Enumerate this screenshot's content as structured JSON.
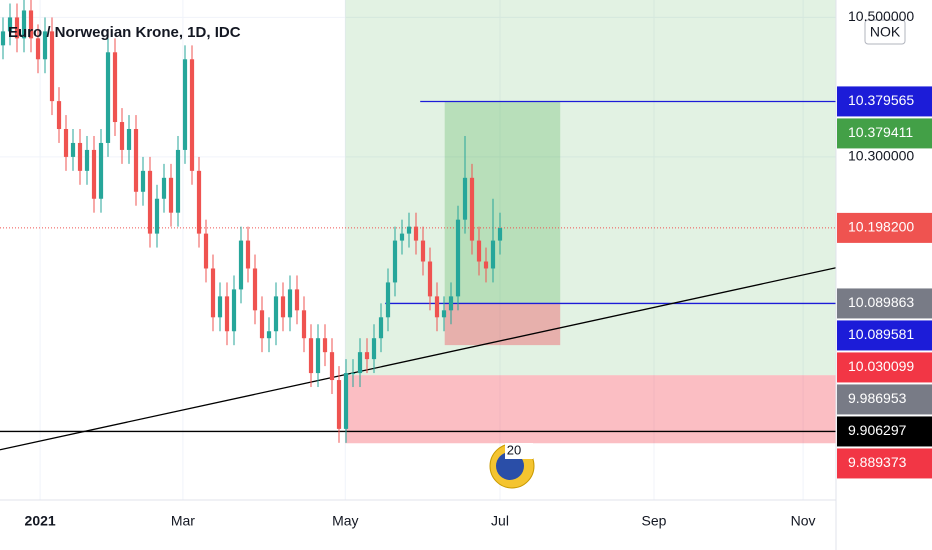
{
  "chart_data": {
    "type": "candlestick",
    "title": "Euro / Norwegian Krone, 1D, IDC",
    "currency": "NOK",
    "watermark_text": "20",
    "x": [
      0,
      1,
      2,
      3,
      4,
      5,
      6,
      7,
      8,
      9,
      10,
      11,
      12,
      13,
      14,
      15,
      16,
      17,
      18,
      19,
      20,
      21,
      22,
      23,
      24,
      25,
      26,
      27,
      28,
      29,
      30,
      31,
      32,
      33,
      34,
      35,
      36,
      37,
      38,
      39,
      40,
      41,
      42,
      43,
      44,
      45,
      46,
      47,
      48,
      49,
      50,
      51,
      52,
      53,
      54,
      55,
      56,
      57,
      58,
      59,
      60,
      61,
      62,
      63,
      64,
      65,
      66,
      67,
      68,
      69,
      70,
      71
    ],
    "series": [
      {
        "up_color": "#26a69a",
        "down_color": "#ef5350",
        "open": [
          10.46,
          10.48,
          10.5,
          10.47,
          10.51,
          10.47,
          10.44,
          10.48,
          10.38,
          10.34,
          10.3,
          10.32,
          10.28,
          10.31,
          10.24,
          10.32,
          10.45,
          10.35,
          10.31,
          10.34,
          10.25,
          10.28,
          10.19,
          10.24,
          10.27,
          10.22,
          10.31,
          10.44,
          10.28,
          10.19,
          10.14,
          10.07,
          10.1,
          10.05,
          10.11,
          10.18,
          10.14,
          10.08,
          10.04,
          10.05,
          10.1,
          10.07,
          10.11,
          10.08,
          10.04,
          9.99,
          10.04,
          10.02,
          9.98,
          9.91,
          9.99,
          9.99,
          10.02,
          10.01,
          10.04,
          10.07,
          10.12,
          10.18,
          10.19,
          10.2,
          10.18,
          10.15,
          10.1,
          10.07,
          10.08,
          10.1,
          10.21,
          10.27,
          10.18,
          10.15,
          10.14,
          10.18
        ],
        "high": [
          10.5,
          10.52,
          10.52,
          10.53,
          10.53,
          10.49,
          10.5,
          10.5,
          10.4,
          10.36,
          10.34,
          10.34,
          10.33,
          10.33,
          10.34,
          10.47,
          10.47,
          10.37,
          10.36,
          10.36,
          10.3,
          10.3,
          10.26,
          10.29,
          10.29,
          10.33,
          10.46,
          10.46,
          10.3,
          10.21,
          10.16,
          10.12,
          10.12,
          10.13,
          10.2,
          10.2,
          10.16,
          10.1,
          10.07,
          10.12,
          10.12,
          10.13,
          10.13,
          10.1,
          10.06,
          10.06,
          10.06,
          10.04,
          10.0,
          10.01,
          10.01,
          10.04,
          10.04,
          10.06,
          10.09,
          10.14,
          10.2,
          10.21,
          10.22,
          10.22,
          10.2,
          10.17,
          10.12,
          10.1,
          10.12,
          10.23,
          10.33,
          10.29,
          10.2,
          10.17,
          10.24,
          10.22
        ],
        "low": [
          10.44,
          10.46,
          10.45,
          10.45,
          10.45,
          10.42,
          10.42,
          10.36,
          10.32,
          10.28,
          10.28,
          10.26,
          10.26,
          10.22,
          10.22,
          10.3,
          10.33,
          10.29,
          10.29,
          10.23,
          10.23,
          10.17,
          10.17,
          10.22,
          10.2,
          10.2,
          10.29,
          10.26,
          10.17,
          10.12,
          10.05,
          10.05,
          10.03,
          10.03,
          10.09,
          10.12,
          10.06,
          10.02,
          10.02,
          10.03,
          10.05,
          10.05,
          10.06,
          10.02,
          9.97,
          9.97,
          10.0,
          9.96,
          9.89,
          9.89,
          9.97,
          9.97,
          9.99,
          9.99,
          10.02,
          10.05,
          10.1,
          10.16,
          10.17,
          10.16,
          10.13,
          10.08,
          10.05,
          10.05,
          10.06,
          10.08,
          10.19,
          10.16,
          10.13,
          10.12,
          10.12,
          10.16
        ],
        "close": [
          10.48,
          10.5,
          10.47,
          10.51,
          10.47,
          10.44,
          10.48,
          10.38,
          10.34,
          10.3,
          10.32,
          10.28,
          10.31,
          10.24,
          10.32,
          10.45,
          10.35,
          10.31,
          10.34,
          10.25,
          10.28,
          10.19,
          10.24,
          10.27,
          10.22,
          10.31,
          10.44,
          10.28,
          10.19,
          10.14,
          10.07,
          10.1,
          10.05,
          10.11,
          10.18,
          10.14,
          10.08,
          10.04,
          10.05,
          10.1,
          10.07,
          10.11,
          10.08,
          10.04,
          9.99,
          10.04,
          10.02,
          9.98,
          9.91,
          9.99,
          9.99,
          10.02,
          10.01,
          10.04,
          10.07,
          10.12,
          10.18,
          10.19,
          10.2,
          10.18,
          10.15,
          10.1,
          10.07,
          10.08,
          10.1,
          10.21,
          10.27,
          10.18,
          10.15,
          10.14,
          10.18,
          10.198
        ]
      }
    ],
    "xlim": [
      -0.43,
      119
    ],
    "xticks": [
      {
        "value": 5.3,
        "label": "2021"
      },
      {
        "value": 25.7,
        "label": "Mar"
      },
      {
        "value": 48.9,
        "label": "May"
      },
      {
        "value": 71,
        "label": "Jul"
      },
      {
        "value": 93,
        "label": "Sep"
      },
      {
        "value": 114.3,
        "label": "Nov"
      }
    ],
    "ylim": [
      9.808,
      10.525
    ],
    "yticks": [
      {
        "value": 10.5,
        "label": "10.500000"
      },
      {
        "value": 10.3,
        "label": "10.300000"
      }
    ],
    "positions": [
      {
        "x0": 48.9,
        "x1": 119,
        "entry": 9.986953,
        "target": 10.53,
        "stop": 9.889373
      },
      {
        "x0": 63.1,
        "x1": 79.6,
        "entry": 10.089863,
        "target": 10.379411,
        "stop": 10.030099
      }
    ],
    "hlines": [
      {
        "value": 10.379411,
        "x0": 59.6,
        "color": "#1c1cd8"
      },
      {
        "value": 10.089863,
        "x0": 54.6,
        "color": "#1c1cd8"
      },
      {
        "value": 9.906297,
        "x0": -0.43,
        "color": "#000000"
      }
    ],
    "trendline": {
      "x": [
        -0.43,
        119
      ],
      "y": [
        9.88,
        10.141
      ]
    },
    "last_price": 10.1982,
    "price_labels": [
      {
        "value": 10.379565,
        "label": "10.379565",
        "color": "#1c1cd8"
      },
      {
        "value": 10.379411,
        "label": "10.379411",
        "color": "#43a047"
      },
      {
        "value": 10.1982,
        "label": "10.198200",
        "color": "#ef5350"
      },
      {
        "value": 10.089863,
        "label": "10.089863",
        "color": "#787b86"
      },
      {
        "value": 10.089581,
        "label": "10.089581",
        "color": "#1c1cd8"
      },
      {
        "value": 10.030099,
        "label": "10.030099",
        "color": "#f23645"
      },
      {
        "value": 9.986953,
        "label": "9.986953",
        "color": "#787b86"
      },
      {
        "value": 9.906297,
        "label": "9.906297",
        "color": "#000000"
      },
      {
        "value": 9.889373,
        "label": "9.889373",
        "color": "#f23645"
      }
    ]
  }
}
